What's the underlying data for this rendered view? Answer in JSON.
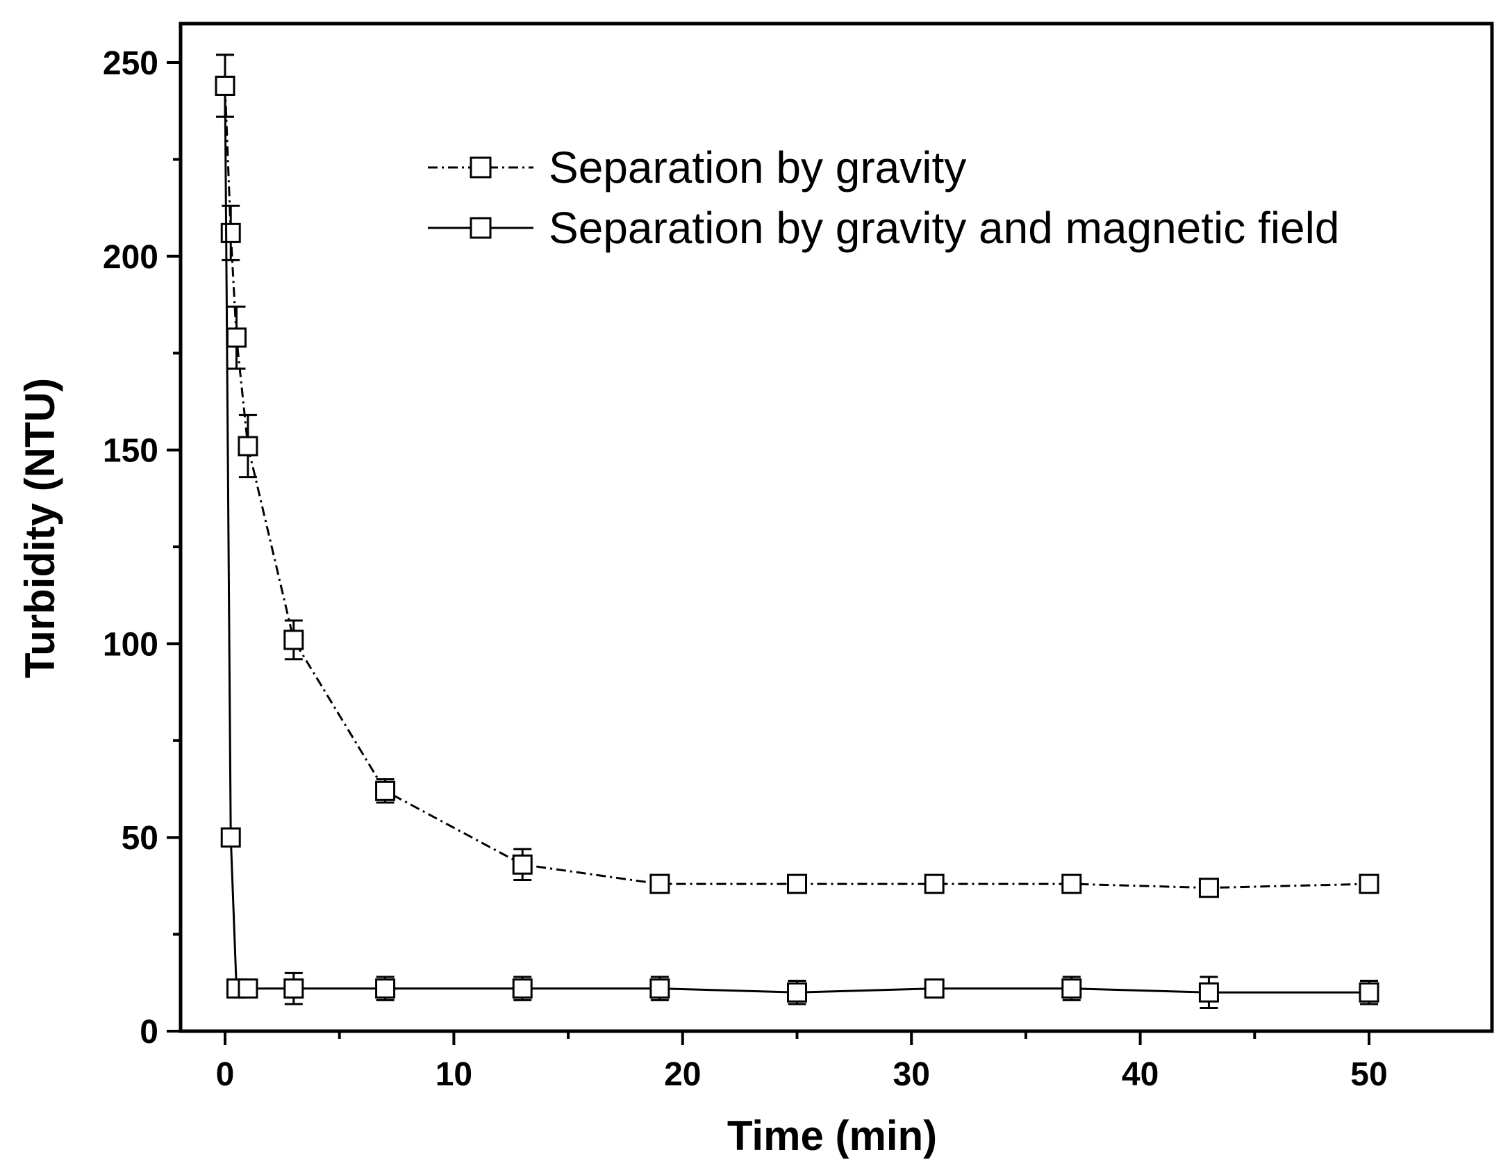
{
  "chart_data": {
    "type": "line",
    "xlabel": "Time (min)",
    "ylabel": "Turbidity (NTU)",
    "xlim": [
      -2,
      55
    ],
    "ylim": [
      0,
      260
    ],
    "xticks": [
      0,
      10,
      20,
      30,
      40,
      50
    ],
    "yticks": [
      0,
      50,
      100,
      150,
      200,
      250
    ],
    "grid": false,
    "legend_position": "top-right",
    "series": [
      {
        "name": "Separation by gravity",
        "line_style": "dash-dot",
        "marker": "open-square",
        "color": "#000000",
        "points": [
          {
            "x": 0,
            "y": 244,
            "err": 8
          },
          {
            "x": 0.25,
            "y": 206,
            "err": 7
          },
          {
            "x": 0.5,
            "y": 179,
            "err": 8
          },
          {
            "x": 1,
            "y": 151,
            "err": 8
          },
          {
            "x": 3,
            "y": 101,
            "err": 5
          },
          {
            "x": 7,
            "y": 62,
            "err": 3
          },
          {
            "x": 13,
            "y": 43,
            "err": 4
          },
          {
            "x": 19,
            "y": 38,
            "err": 2
          },
          {
            "x": 25,
            "y": 38,
            "err": 2
          },
          {
            "x": 31,
            "y": 38,
            "err": 2
          },
          {
            "x": 37,
            "y": 38,
            "err": 2
          },
          {
            "x": 43,
            "y": 37,
            "err": 2
          },
          {
            "x": 50,
            "y": 38,
            "err": 2
          }
        ]
      },
      {
        "name": "Separation by gravity and magnetic field",
        "line_style": "solid",
        "marker": "open-square",
        "color": "#000000",
        "points": [
          {
            "x": 0,
            "y": 244,
            "err": 8
          },
          {
            "x": 0.25,
            "y": 50,
            "err": 1
          },
          {
            "x": 0.5,
            "y": 11,
            "err": 2
          },
          {
            "x": 1,
            "y": 11,
            "err": 2
          },
          {
            "x": 3,
            "y": 11,
            "err": 4
          },
          {
            "x": 7,
            "y": 11,
            "err": 3
          },
          {
            "x": 13,
            "y": 11,
            "err": 3
          },
          {
            "x": 19,
            "y": 11,
            "err": 3
          },
          {
            "x": 25,
            "y": 10,
            "err": 3
          },
          {
            "x": 31,
            "y": 11,
            "err": 2
          },
          {
            "x": 37,
            "y": 11,
            "err": 3
          },
          {
            "x": 43,
            "y": 10,
            "err": 4
          },
          {
            "x": 50,
            "y": 10,
            "err": 3
          }
        ]
      }
    ]
  }
}
